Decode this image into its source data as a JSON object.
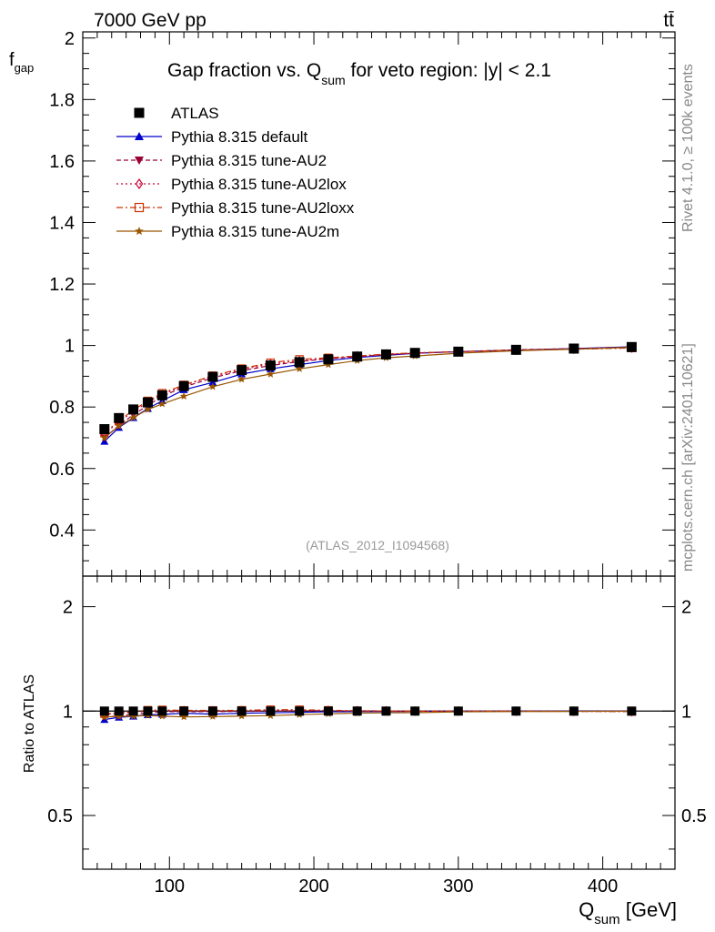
{
  "header": {
    "energy_label": "7000 GeV pp",
    "process_label": "tt̄",
    "title_prefix": "Gap fraction vs. Q",
    "title_sub": "sum",
    "title_suffix": " for veto region: |y| < 2.1",
    "watermark": "(ATLAS_2012_I1094568)",
    "side_rivet": "Rivet 4.1.0, ≥ 100k events",
    "side_mcplots": "mcplots.cern.ch [arXiv:2401.10621]"
  },
  "axes": {
    "ylabel_main": "f",
    "ylabel_main_sub": "gap",
    "ylabel_ratio": "Ratio to ATLAS",
    "xlabel": "Q",
    "xlabel_sub": "sum",
    "xlabel_unit": " [GeV]"
  },
  "chart_data": {
    "type": "line",
    "title": "Gap fraction vs. Qsum for veto region: |y| < 2.1",
    "xlabel": "Qsum [GeV]",
    "ylabel": "f_gap",
    "xlim": [
      40,
      450
    ],
    "ylim": [
      0.25,
      2.02
    ],
    "ratio_ylim": [
      0.35,
      2.45
    ],
    "x_ticks": [
      100,
      200,
      300,
      400
    ],
    "y_ticks": [
      "0.4",
      "0.6",
      "0.8",
      "1",
      "1.2",
      "1.4",
      "1.6",
      "1.8",
      "2"
    ],
    "ratio_ticks": [
      "0.5",
      "1",
      "2"
    ],
    "x": [
      55,
      65,
      75,
      85,
      95,
      110,
      130,
      150,
      170,
      190,
      210,
      230,
      250,
      270,
      300,
      340,
      380,
      420
    ],
    "series": [
      {
        "name": "ATLAS",
        "color": "#000000",
        "marker": "square-filled",
        "style": "data",
        "values": [
          0.728,
          0.764,
          0.792,
          0.815,
          0.838,
          0.868,
          0.898,
          0.92,
          0.935,
          0.946,
          0.955,
          0.964,
          0.971,
          0.976,
          0.98,
          0.986,
          0.99,
          0.995
        ]
      },
      {
        "name": "Pythia 8.315 default",
        "color": "#0000cc",
        "marker": "triangle-up-filled",
        "style": "solid",
        "values": [
          0.688,
          0.733,
          0.765,
          0.795,
          0.82,
          0.856,
          0.88,
          0.907,
          0.924,
          0.938,
          0.951,
          0.961,
          0.968,
          0.975,
          0.98,
          0.985,
          0.99,
          0.996
        ]
      },
      {
        "name": "Pythia 8.315 tune-AU2",
        "color": "#990033",
        "marker": "triangle-down-filled",
        "style": "dashed",
        "values": [
          0.7,
          0.74,
          0.775,
          0.805,
          0.835,
          0.865,
          0.895,
          0.918,
          0.935,
          0.948,
          0.957,
          0.964,
          0.97,
          0.975,
          0.98,
          0.986,
          0.99,
          0.995
        ]
      },
      {
        "name": "Pythia 8.315 tune-AU2lox",
        "color": "#cc0033",
        "marker": "diamond-open",
        "style": "dotted",
        "values": [
          0.712,
          0.752,
          0.785,
          0.815,
          0.84,
          0.87,
          0.9,
          0.922,
          0.94,
          0.95,
          0.958,
          0.966,
          0.972,
          0.976,
          0.98,
          0.985,
          0.988,
          0.992
        ]
      },
      {
        "name": "Pythia 8.315 tune-AU2loxx",
        "color": "#cc3300",
        "marker": "square-open",
        "style": "dashdot",
        "values": [
          0.715,
          0.755,
          0.79,
          0.82,
          0.845,
          0.872,
          0.902,
          0.925,
          0.944,
          0.955,
          0.96,
          0.966,
          0.972,
          0.976,
          0.98,
          0.985,
          0.988,
          0.992
        ]
      },
      {
        "name": "Pythia 8.315 tune-AU2m",
        "color": "#995500",
        "marker": "star",
        "style": "solid",
        "values": [
          0.7,
          0.738,
          0.765,
          0.792,
          0.81,
          0.835,
          0.866,
          0.89,
          0.907,
          0.924,
          0.938,
          0.951,
          0.96,
          0.966,
          0.975,
          0.983,
          0.988,
          0.994
        ]
      }
    ]
  }
}
